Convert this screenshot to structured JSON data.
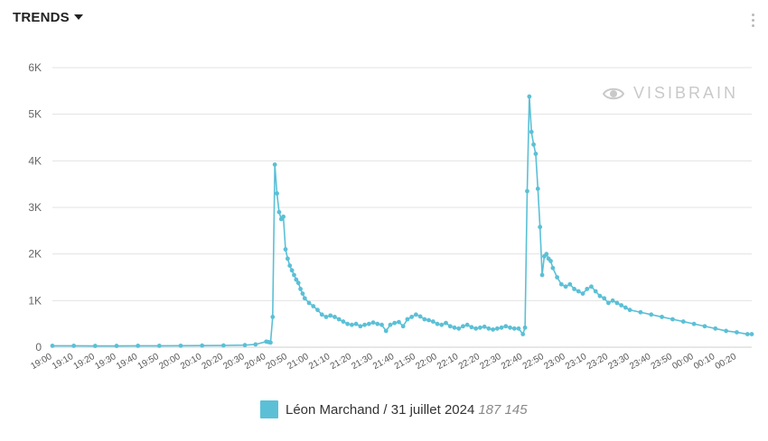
{
  "header": {
    "title": "TRENDS",
    "caret_icon": "caret-down-icon",
    "menu_icon": "more-vertical-icon"
  },
  "watermark": {
    "text": "VISIBRAIN",
    "icon": "eye-icon"
  },
  "colors": {
    "series": "#5bc0d6",
    "grid": "#e3e3e3"
  },
  "chart_data": {
    "type": "line",
    "title": "",
    "xlabel": "",
    "ylabel": "",
    "ylim": [
      0,
      6000
    ],
    "yticks": [
      0,
      1000,
      2000,
      3000,
      4000,
      5000,
      6000
    ],
    "ytick_labels": [
      "0",
      "1K",
      "2K",
      "3K",
      "4K",
      "5K",
      "6K"
    ],
    "xticks": [
      "19:00",
      "19:10",
      "19:20",
      "19:30",
      "19:40",
      "19:50",
      "20:00",
      "20:10",
      "20:20",
      "20:30",
      "20:40",
      "20:50",
      "21:00",
      "21:10",
      "21:20",
      "21:30",
      "21:40",
      "21:50",
      "22:00",
      "22:10",
      "22:20",
      "22:30",
      "22:40",
      "22:50",
      "23:00",
      "23:10",
      "23:20",
      "23:30",
      "23:40",
      "23:50",
      "00:00",
      "00:10",
      "00:20"
    ],
    "xlim": [
      "19:00",
      "00:27"
    ],
    "grid": true,
    "legend_position": "bottom-center",
    "series": [
      {
        "name": "Léon Marchand / 31 juillet 2024",
        "total": "187 145",
        "points": [
          [
            "19:00",
            30
          ],
          [
            "19:10",
            30
          ],
          [
            "19:20",
            28
          ],
          [
            "19:30",
            28
          ],
          [
            "19:40",
            30
          ],
          [
            "19:50",
            30
          ],
          [
            "20:00",
            32
          ],
          [
            "20:10",
            35
          ],
          [
            "20:20",
            38
          ],
          [
            "20:30",
            45
          ],
          [
            "20:35",
            60
          ],
          [
            "20:40",
            120
          ],
          [
            "20:41",
            110
          ],
          [
            "20:42",
            100
          ],
          [
            "20:43",
            650
          ],
          [
            "20:44",
            3920
          ],
          [
            "20:45",
            3300
          ],
          [
            "20:46",
            2900
          ],
          [
            "20:47",
            2750
          ],
          [
            "20:48",
            2800
          ],
          [
            "20:49",
            2100
          ],
          [
            "20:50",
            1900
          ],
          [
            "20:51",
            1750
          ],
          [
            "20:52",
            1650
          ],
          [
            "20:53",
            1550
          ],
          [
            "20:54",
            1450
          ],
          [
            "20:55",
            1380
          ],
          [
            "20:56",
            1250
          ],
          [
            "20:57",
            1150
          ],
          [
            "20:58",
            1050
          ],
          [
            "21:00",
            950
          ],
          [
            "21:02",
            880
          ],
          [
            "21:04",
            800
          ],
          [
            "21:06",
            700
          ],
          [
            "21:08",
            650
          ],
          [
            "21:10",
            680
          ],
          [
            "21:12",
            650
          ],
          [
            "21:14",
            600
          ],
          [
            "21:16",
            550
          ],
          [
            "21:18",
            500
          ],
          [
            "21:20",
            480
          ],
          [
            "21:22",
            500
          ],
          [
            "21:24",
            450
          ],
          [
            "21:26",
            480
          ],
          [
            "21:28",
            500
          ],
          [
            "21:30",
            530
          ],
          [
            "21:32",
            500
          ],
          [
            "21:34",
            480
          ],
          [
            "21:36",
            350
          ],
          [
            "21:38",
            480
          ],
          [
            "21:40",
            520
          ],
          [
            "21:42",
            540
          ],
          [
            "21:44",
            450
          ],
          [
            "21:46",
            600
          ],
          [
            "21:48",
            650
          ],
          [
            "21:50",
            700
          ],
          [
            "21:52",
            660
          ],
          [
            "21:54",
            600
          ],
          [
            "21:56",
            580
          ],
          [
            "21:58",
            550
          ],
          [
            "22:00",
            500
          ],
          [
            "22:02",
            480
          ],
          [
            "22:04",
            520
          ],
          [
            "22:06",
            450
          ],
          [
            "22:08",
            420
          ],
          [
            "22:10",
            400
          ],
          [
            "22:12",
            450
          ],
          [
            "22:14",
            480
          ],
          [
            "22:16",
            430
          ],
          [
            "22:18",
            400
          ],
          [
            "22:20",
            420
          ],
          [
            "22:22",
            440
          ],
          [
            "22:24",
            400
          ],
          [
            "22:26",
            380
          ],
          [
            "22:28",
            400
          ],
          [
            "22:30",
            420
          ],
          [
            "22:32",
            450
          ],
          [
            "22:34",
            420
          ],
          [
            "22:36",
            400
          ],
          [
            "22:38",
            400
          ],
          [
            "22:40",
            280
          ],
          [
            "22:41",
            420
          ],
          [
            "22:42",
            3350
          ],
          [
            "22:43",
            5380
          ],
          [
            "22:44",
            4620
          ],
          [
            "22:45",
            4350
          ],
          [
            "22:46",
            4150
          ],
          [
            "22:47",
            3400
          ],
          [
            "22:48",
            2580
          ],
          [
            "22:49",
            1550
          ],
          [
            "22:50",
            1950
          ],
          [
            "22:51",
            2000
          ],
          [
            "22:52",
            1900
          ],
          [
            "22:53",
            1850
          ],
          [
            "22:54",
            1700
          ],
          [
            "22:56",
            1500
          ],
          [
            "22:58",
            1350
          ],
          [
            "23:00",
            1300
          ],
          [
            "23:02",
            1350
          ],
          [
            "23:04",
            1250
          ],
          [
            "23:06",
            1200
          ],
          [
            "23:08",
            1150
          ],
          [
            "23:10",
            1250
          ],
          [
            "23:12",
            1300
          ],
          [
            "23:14",
            1200
          ],
          [
            "23:16",
            1100
          ],
          [
            "23:18",
            1050
          ],
          [
            "23:20",
            950
          ],
          [
            "23:22",
            1000
          ],
          [
            "23:24",
            950
          ],
          [
            "23:26",
            900
          ],
          [
            "23:28",
            850
          ],
          [
            "23:30",
            800
          ],
          [
            "23:35",
            750
          ],
          [
            "23:40",
            700
          ],
          [
            "23:45",
            650
          ],
          [
            "23:50",
            600
          ],
          [
            "23:55",
            550
          ],
          [
            "00:00",
            500
          ],
          [
            "00:05",
            450
          ],
          [
            "00:10",
            400
          ],
          [
            "00:15",
            350
          ],
          [
            "00:20",
            320
          ],
          [
            "00:25",
            280
          ],
          [
            "00:27",
            280
          ]
        ]
      }
    ]
  }
}
